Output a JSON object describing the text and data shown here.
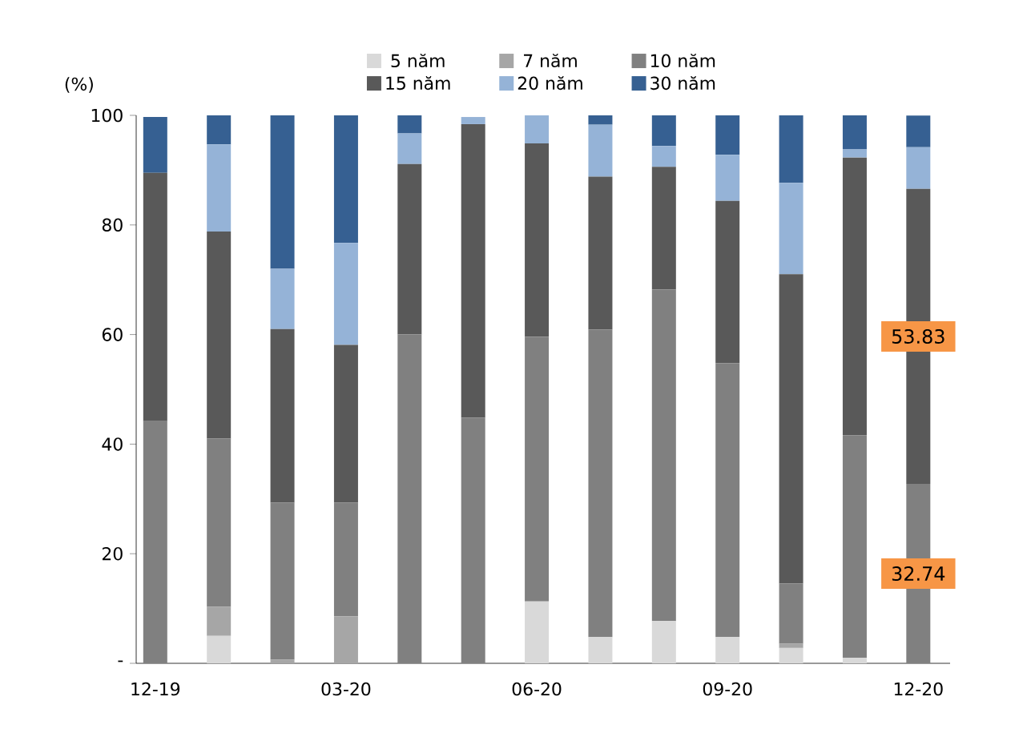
{
  "chart_data": {
    "type": "bar",
    "stacked": true,
    "ylabel": "(%)",
    "categories": [
      "12-19",
      null,
      null,
      "03-20",
      null,
      null,
      "06-20",
      null,
      null,
      "09-20",
      null,
      null,
      "12-20"
    ],
    "series": [
      {
        "name": "5 năm",
        "color": "#d9d9d9",
        "values": [
          0,
          5.0,
          0,
          0,
          0,
          0,
          11.3,
          4.8,
          7.7,
          4.8,
          2.8,
          1.0,
          0
        ]
      },
      {
        "name": "7 năm",
        "color": "#a6a6a6",
        "values": [
          null,
          5.3,
          0.7,
          8.6,
          0,
          null,
          0,
          0,
          0,
          0,
          0.8,
          0,
          0
        ]
      },
      {
        "name": "10 năm",
        "color": "#808080",
        "values": [
          44.2,
          30.7,
          28.6,
          20.7,
          60.0,
          44.8,
          48.3,
          56.1,
          60.5,
          50.0,
          11.0,
          40.6,
          32.74
        ],
        "value_labels": [
          null,
          null,
          null,
          null,
          null,
          null,
          null,
          null,
          null,
          null,
          null,
          null,
          "32.74"
        ]
      },
      {
        "name": "15 năm",
        "color": "#595959",
        "values": [
          45.3,
          37.8,
          31.7,
          28.8,
          31.1,
          53.6,
          35.3,
          27.9,
          22.4,
          29.6,
          56.4,
          50.7,
          53.83
        ],
        "value_labels": [
          null,
          null,
          null,
          null,
          null,
          null,
          null,
          null,
          null,
          null,
          null,
          null,
          "53.83"
        ]
      },
      {
        "name": "20 năm",
        "color": "#95b3d7",
        "values": [
          0,
          15.9,
          11.0,
          18.6,
          5.6,
          1.3,
          5.1,
          9.5,
          3.8,
          8.4,
          16.7,
          1.5,
          7.6
        ]
      },
      {
        "name": "30 năm",
        "color": "#366092",
        "values": [
          10.2,
          5.3,
          28.0,
          23.3,
          3.3,
          0,
          0,
          1.7,
          5.6,
          7.2,
          12.3,
          6.2,
          5.8
        ]
      }
    ],
    "ylim": [
      0,
      100
    ],
    "yticks": [
      {
        "value": 0,
        "label": "-"
      },
      20,
      40,
      60,
      80,
      100
    ],
    "legend": "top"
  }
}
